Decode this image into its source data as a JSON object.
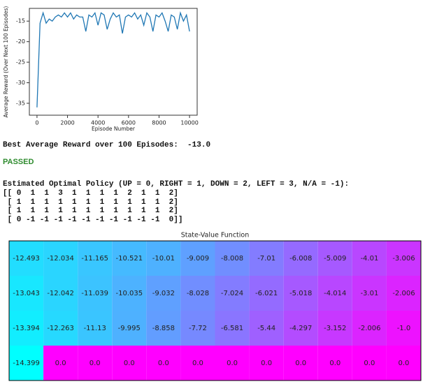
{
  "chart_data": [
    {
      "type": "line",
      "x_label": "Episode Number",
      "y_label": "Average Reward (Over Next 100 Episodes)",
      "x": [
        0,
        200,
        400,
        600,
        800,
        1000,
        1200,
        1400,
        1600,
        1800,
        2000,
        2200,
        2400,
        2600,
        2800,
        3000,
        3200,
        3400,
        3600,
        3800,
        4000,
        4200,
        4400,
        4600,
        4800,
        5000,
        5200,
        5400,
        5600,
        5800,
        6000,
        6200,
        6400,
        6600,
        6800,
        7000,
        7200,
        7400,
        7600,
        7800,
        8000,
        8200,
        8400,
        8600,
        8800,
        9000,
        9200,
        9400,
        9600,
        9800,
        10000
      ],
      "values": [
        -36,
        -15.5,
        -13,
        -15.5,
        -14.5,
        -15,
        -14,
        -13.5,
        -14,
        -13,
        -14,
        -13,
        -14.5,
        -13.5,
        -14,
        -14,
        -17.5,
        -13.5,
        -14,
        -13,
        -16,
        -13,
        -13.5,
        -17,
        -14.5,
        -13,
        -14,
        -13.5,
        -18,
        -14,
        -13.5,
        -14,
        -13,
        -14.5,
        -13.5,
        -16,
        -13,
        -14,
        -17.5,
        -13.5,
        -14,
        -13,
        -15,
        -17.5,
        -13.5,
        -14,
        -17,
        -13,
        -15,
        -13.5,
        -17.5
      ],
      "color": "#1f77b4",
      "xlim": [
        -500,
        10500
      ],
      "xticks": [
        0,
        2000,
        4000,
        6000,
        8000,
        10000
      ],
      "ylim": [
        -37.9,
        -11.9
      ],
      "yticks": [
        -15,
        -20,
        -25,
        -30,
        -35
      ]
    },
    {
      "type": "heatmap",
      "title": "State-Value Function",
      "colors": [
        "#00ffff",
        "#ff00ff"
      ],
      "values": [
        [
          -12.493,
          -12.034,
          -11.165,
          -10.521,
          -10.01,
          -9.009,
          -8.008,
          -7.01,
          -6.008,
          -5.009,
          -4.01,
          -3.006
        ],
        [
          -13.043,
          -12.042,
          -11.039,
          -10.035,
          -9.032,
          -8.028,
          -7.024,
          -6.021,
          -5.018,
          -4.014,
          -3.01,
          -2.006
        ],
        [
          -13.394,
          -12.263,
          -11.13,
          -9.995,
          -8.858,
          -7.72,
          -6.581,
          -5.44,
          -4.297,
          -3.152,
          -2.006,
          -1.0
        ],
        [
          -14.399,
          0.0,
          0.0,
          0.0,
          0.0,
          0.0,
          0.0,
          0.0,
          0.0,
          0.0,
          0.0,
          0.0
        ]
      ],
      "value_labels": [
        [
          "-12.493",
          "-12.034",
          "-11.165",
          "-10.521",
          "-10.01",
          "-9.009",
          "-8.008",
          "-7.01",
          "-6.008",
          "-5.009",
          "-4.01",
          "-3.006"
        ],
        [
          "-13.043",
          "-12.042",
          "-11.039",
          "-10.035",
          "-9.032",
          "-8.028",
          "-7.024",
          "-6.021",
          "-5.018",
          "-4.014",
          "-3.01",
          "-2.006"
        ],
        [
          "-13.394",
          "-12.263",
          "-11.13",
          "-9.995",
          "-8.858",
          "-7.72",
          "-6.581",
          "-5.44",
          "-4.297",
          "-3.152",
          "-2.006",
          "-1.0"
        ],
        [
          "-14.399",
          "0.0",
          "0.0",
          "0.0",
          "0.0",
          "0.0",
          "0.0",
          "0.0",
          "0.0",
          "0.0",
          "0.0",
          "0.0"
        ]
      ]
    }
  ],
  "outputs": {
    "best_reward": "Best Average Reward over 100 Episodes:  -13.0",
    "status": "PASSED",
    "policy_header": "Estimated Optimal Policy (UP = 0, RIGHT = 1, DOWN = 2, LEFT = 3, N/A = -1):",
    "policy_rows": [
      "[[ 0  1  1  3  1  1  1  1  2  1  1  2]",
      " [ 1  1  1  1  1  1  1  1  1  1  1  2]",
      " [ 1  1  1  1  1  1  1  1  1  1  1  2]",
      " [ 0 -1 -1 -1 -1 -1 -1 -1 -1 -1 -1  0]]"
    ]
  }
}
